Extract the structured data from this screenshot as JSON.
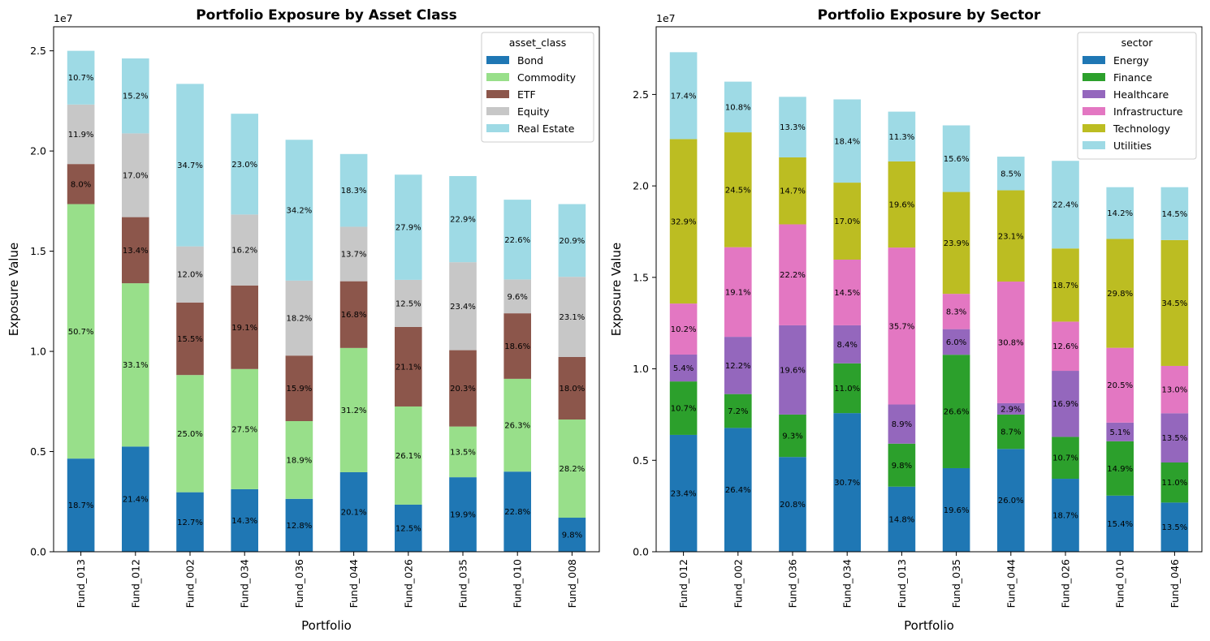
{
  "chart_data": [
    {
      "type": "bar",
      "stacked": true,
      "title": "Portfolio Exposure by Asset Class",
      "xlabel": "Portfolio",
      "ylabel": "Exposure Value",
      "y_offset_text": "1e7",
      "y_scale": 10000000,
      "ylim": [
        0,
        26200000
      ],
      "yticks": [
        0,
        5000000,
        10000000,
        15000000,
        20000000,
        25000000
      ],
      "ytick_labels": [
        "0.0",
        "0.5",
        "1.0",
        "1.5",
        "2.0",
        "2.5"
      ],
      "legend_title": "asset_class",
      "legend_position": "top-right",
      "grid": false,
      "categories": [
        "Fund_013",
        "Fund_012",
        "Fund_002",
        "Fund_034",
        "Fund_036",
        "Fund_044",
        "Fund_026",
        "Fund_035",
        "Fund_010",
        "Fund_008"
      ],
      "series": [
        {
          "name": "Bond",
          "color": "#1f77b4",
          "values": [
            4650000,
            5250000,
            2970000,
            3120000,
            2640000,
            3970000,
            2350000,
            3720000,
            4000000,
            1700000
          ],
          "labels": [
            "18.7%",
            "21.4%",
            "12.7%",
            "14.3%",
            "12.8%",
            "20.1%",
            "12.5%",
            "19.9%",
            "22.8%",
            "9.8%"
          ]
        },
        {
          "name": "Commodity",
          "color": "#98df8a",
          "values": [
            12700000,
            8150000,
            5850000,
            6000000,
            3880000,
            6200000,
            4900000,
            2530000,
            4630000,
            4900000
          ],
          "labels": [
            "50.7%",
            "33.1%",
            "25.0%",
            "27.5%",
            "18.9%",
            "31.2%",
            "26.1%",
            "13.5%",
            "26.3%",
            "28.2%"
          ]
        },
        {
          "name": "ETF",
          "color": "#8c564b",
          "values": [
            2000000,
            3300000,
            3620000,
            4170000,
            3270000,
            3330000,
            3970000,
            3810000,
            3270000,
            3120000
          ],
          "labels": [
            "8.0%",
            "13.4%",
            "15.5%",
            "19.1%",
            "15.9%",
            "16.8%",
            "21.1%",
            "20.3%",
            "18.6%",
            "18.0%"
          ]
        },
        {
          "name": "Equity",
          "color": "#c7c7c7",
          "values": [
            2970000,
            4180000,
            2800000,
            3540000,
            3740000,
            2720000,
            2350000,
            4390000,
            1690000,
            4000000
          ],
          "labels": [
            "11.9%",
            "17.0%",
            "12.0%",
            "16.2%",
            "18.2%",
            "13.7%",
            "12.5%",
            "23.4%",
            "9.6%",
            "23.1%"
          ]
        },
        {
          "name": "Real Estate",
          "color": "#9edae5",
          "values": [
            2680000,
            3740000,
            8110000,
            5030000,
            7030000,
            3630000,
            5250000,
            4300000,
            3980000,
            3630000
          ],
          "labels": [
            "10.7%",
            "15.2%",
            "34.7%",
            "23.0%",
            "34.2%",
            "18.3%",
            "27.9%",
            "22.9%",
            "22.6%",
            "20.9%"
          ]
        }
      ]
    },
    {
      "type": "bar",
      "stacked": true,
      "title": "Portfolio Exposure by Sector",
      "xlabel": "Portfolio",
      "ylabel": "Exposure Value",
      "y_offset_text": "1e7",
      "y_scale": 10000000,
      "ylim": [
        0,
        28700000
      ],
      "yticks": [
        0,
        5000000,
        10000000,
        15000000,
        20000000,
        25000000
      ],
      "ytick_labels": [
        "0.0",
        "0.5",
        "1.0",
        "1.5",
        "2.0",
        "2.5"
      ],
      "legend_title": "sector",
      "legend_position": "top-right",
      "grid": false,
      "categories": [
        "Fund_012",
        "Fund_002",
        "Fund_036",
        "Fund_034",
        "Fund_013",
        "Fund_035",
        "Fund_044",
        "Fund_026",
        "Fund_010",
        "Fund_046"
      ],
      "series": [
        {
          "name": "Energy",
          "color": "#1f77b4",
          "values": [
            6390000,
            6770000,
            5180000,
            7580000,
            3560000,
            4570000,
            5620000,
            3990000,
            3070000,
            2690000
          ],
          "labels": [
            "23.4%",
            "26.4%",
            "20.8%",
            "30.7%",
            "14.8%",
            "19.6%",
            "26.0%",
            "18.7%",
            "15.4%",
            "13.5%"
          ]
        },
        {
          "name": "Finance",
          "color": "#2ca02c",
          "values": [
            2920000,
            1850000,
            2320000,
            2720000,
            2350000,
            6200000,
            1880000,
            2290000,
            2970000,
            2190000
          ],
          "labels": [
            "10.7%",
            "7.2%",
            "9.3%",
            "11.0%",
            "9.8%",
            "26.6%",
            "8.7%",
            "10.7%",
            "14.9%",
            "11.0%"
          ]
        },
        {
          "name": "Healthcare",
          "color": "#9467bd",
          "values": [
            1470000,
            3130000,
            4880000,
            2080000,
            2140000,
            1400000,
            620000,
            3610000,
            1020000,
            2690000
          ],
          "labels": [
            "5.4%",
            "12.2%",
            "19.6%",
            "8.4%",
            "8.9%",
            "6.0%",
            "2.9%",
            "16.9%",
            "5.1%",
            "13.5%"
          ]
        },
        {
          "name": "Infrastructure",
          "color": "#e377c2",
          "values": [
            2790000,
            4900000,
            5520000,
            3590000,
            8580000,
            1930000,
            6650000,
            2690000,
            4090000,
            2590000
          ],
          "labels": [
            "10.2%",
            "19.1%",
            "22.2%",
            "14.5%",
            "35.7%",
            "8.3%",
            "30.8%",
            "12.6%",
            "20.5%",
            "13.0%"
          ]
        },
        {
          "name": "Technology",
          "color": "#bcbd22",
          "values": [
            8990000,
            6280000,
            3660000,
            4210000,
            4710000,
            5570000,
            4990000,
            4000000,
            5950000,
            6880000
          ],
          "labels": [
            "32.9%",
            "24.5%",
            "14.7%",
            "17.0%",
            "19.6%",
            "23.9%",
            "23.1%",
            "18.7%",
            "29.8%",
            "34.5%"
          ]
        },
        {
          "name": "Utilities",
          "color": "#9edae5",
          "values": [
            4750000,
            2770000,
            3310000,
            4550000,
            2720000,
            3640000,
            1840000,
            4790000,
            2830000,
            2890000
          ],
          "labels": [
            "17.4%",
            "10.8%",
            "13.3%",
            "18.4%",
            "11.3%",
            "15.6%",
            "8.5%",
            "22.4%",
            "14.2%",
            "14.5%"
          ]
        }
      ]
    }
  ]
}
